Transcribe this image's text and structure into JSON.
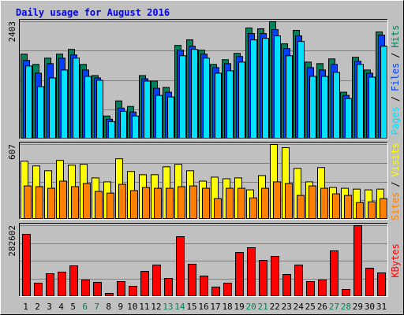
{
  "title": "Daily usage for August 2016",
  "legend_separator": "/",
  "chart_data": [
    {
      "type": "bar",
      "ylim": [
        0,
        2403
      ],
      "yticks": [
        2403
      ],
      "grid": true,
      "series": [
        {
          "name": "Hits",
          "color": "#00805c",
          "values": [
            1738,
            1527,
            1656,
            1738,
            1835,
            1527,
            1299,
            471,
            780,
            666,
            1299,
            1186,
            1056,
            1916,
            2030,
            1819,
            1527,
            1624,
            1754,
            2274,
            2257,
            2403,
            1949,
            2225,
            1575,
            1543,
            1640,
            958,
            1673,
            1413,
            2192
          ]
        },
        {
          "name": "Files",
          "color": "#0040ff",
          "values": [
            1608,
            1348,
            1543,
            1656,
            1721,
            1413,
            1250,
            406,
            633,
            552,
            1234,
            1039,
            958,
            1819,
            1900,
            1738,
            1462,
            1543,
            1689,
            2160,
            2160,
            2241,
            1851,
            2111,
            1462,
            1413,
            1527,
            893,
            1592,
            1348,
            2127
          ]
        },
        {
          "name": "Pages",
          "color": "#00e0ff",
          "values": [
            1494,
            1072,
            1250,
            1413,
            1656,
            1283,
            1202,
            357,
            568,
            471,
            1186,
            893,
            861,
            1705,
            1835,
            1656,
            1348,
            1397,
            1575,
            2030,
            2062,
            2111,
            1705,
            1998,
            1283,
            1283,
            1364,
            828,
            1527,
            1267,
            1900
          ]
        }
      ]
    },
    {
      "type": "bar",
      "ylim": [
        0,
        607
      ],
      "yticks": [
        607
      ],
      "grid": true,
      "series": [
        {
          "name": "Visits",
          "color": "#ffff00",
          "values": [
            472,
            433,
            394,
            478,
            439,
            446,
            336,
            304,
            491,
            388,
            362,
            362,
            426,
            446,
            394,
            310,
            342,
            329,
            336,
            239,
            355,
            607,
            581,
            413,
            304,
            420,
            258,
            252,
            245,
            239,
            245
          ]
        },
        {
          "name": "Sites",
          "color": "#ff8000",
          "values": [
            271,
            265,
            252,
            310,
            265,
            291,
            226,
            213,
            284,
            233,
            258,
            252,
            252,
            265,
            271,
            252,
            168,
            252,
            252,
            174,
            252,
            304,
            291,
            194,
            271,
            252,
            207,
            194,
            136,
            142,
            168
          ]
        }
      ]
    },
    {
      "type": "bar",
      "ylim": [
        0,
        282602
      ],
      "yticks": [
        282602
      ],
      "grid": true,
      "categories": [
        "1",
        "2",
        "3",
        "4",
        "5",
        "6",
        "7",
        "8",
        "9",
        "10",
        "11",
        "12",
        "13",
        "14",
        "15",
        "16",
        "17",
        "18",
        "19",
        "20",
        "21",
        "22",
        "23",
        "24",
        "25",
        "26",
        "27",
        "28",
        "29",
        "30",
        "31"
      ],
      "category_colors": [
        "#000000",
        "#000000",
        "#000000",
        "#000000",
        "#000000",
        "#00805c",
        "#00805c",
        "#000000",
        "#000000",
        "#000000",
        "#000000",
        "#000000",
        "#00805c",
        "#00805c",
        "#000000",
        "#000000",
        "#000000",
        "#000000",
        "#000000",
        "#00805c",
        "#00805c",
        "#000000",
        "#000000",
        "#000000",
        "#000000",
        "#000000",
        "#00805c",
        "#00805c",
        "#000000",
        "#000000",
        "#000000"
      ],
      "series": [
        {
          "name": "KBytes",
          "color": "#ff0000",
          "values": [
            248060,
            53380,
            91060,
            97340,
            122460,
            65940,
            56520,
            12560,
            59660,
            40820,
            100480,
            125600,
            72220,
            238640,
            128740,
            81640,
            37680,
            53380,
            175840,
            194680,
            144440,
            160140,
            87920,
            125600,
            59660,
            65940,
            182120,
            28260,
            282602,
            113040,
            94200
          ]
        }
      ]
    }
  ]
}
